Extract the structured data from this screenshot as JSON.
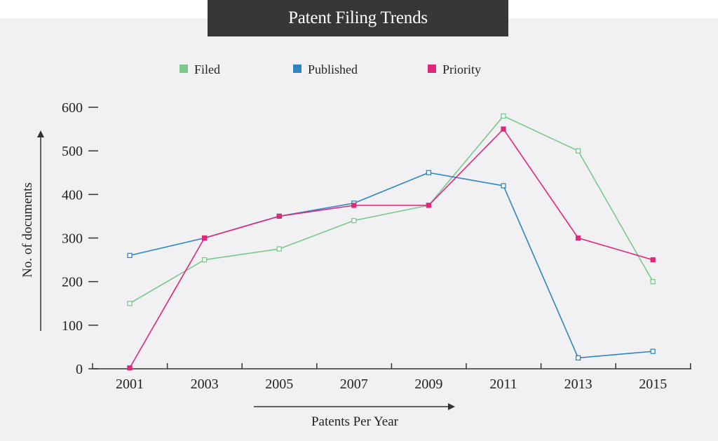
{
  "chart_data": {
    "type": "line",
    "title": "Patent Filing Trends",
    "xlabel": "Patents Per Year",
    "ylabel": "No. of documents",
    "categories": [
      "2001",
      "2003",
      "2005",
      "2007",
      "2009",
      "2011",
      "2013",
      "2015"
    ],
    "ylim": [
      0,
      600
    ],
    "yticks": [
      0,
      100,
      200,
      300,
      400,
      500,
      600
    ],
    "grid": false,
    "legend_position": "top",
    "series": [
      {
        "name": "Filed",
        "color": "#7ac98a",
        "marker": "hollow-square",
        "values": [
          150,
          250,
          275,
          340,
          375,
          580,
          500,
          200
        ]
      },
      {
        "name": "Published",
        "color": "#2e86c1",
        "marker": "hollow-square",
        "values": [
          260,
          300,
          350,
          380,
          450,
          420,
          25,
          40
        ]
      },
      {
        "name": "Priority",
        "color": "#e0287b",
        "marker": "filled-square",
        "values": [
          2,
          300,
          350,
          375,
          375,
          550,
          300,
          250
        ]
      }
    ]
  }
}
